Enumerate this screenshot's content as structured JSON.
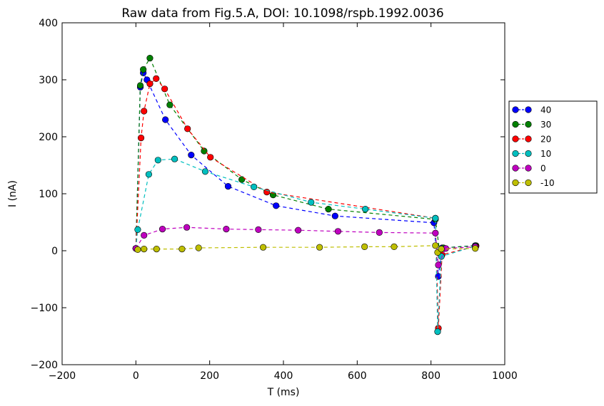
{
  "chart_data": {
    "type": "line",
    "title": "Raw data from Fig.5.A, DOI: 10.1098/rspb.1992.0036",
    "xlabel": "T (ms)",
    "ylabel": "I (nA)",
    "xlim": [
      -200,
      1000
    ],
    "ylim": [
      -200,
      400
    ],
    "xticks": [
      -200,
      0,
      200,
      400,
      600,
      800,
      1000
    ],
    "yticks": [
      -200,
      -100,
      0,
      100,
      200,
      300,
      400
    ],
    "xtick_labels": [
      "−200",
      "0",
      "200",
      "400",
      "600",
      "800",
      "1000"
    ],
    "ytick_labels": [
      "−200",
      "−100",
      "0",
      "100",
      "200",
      "300",
      "400"
    ],
    "grid": false,
    "legend_position": "outside-right",
    "line_style": "dashed with circle markers",
    "series": [
      {
        "name": "40",
        "color": "#0000ff",
        "x": [
          0,
          12,
          20,
          30,
          80,
          150,
          250,
          380,
          540,
          808,
          820,
          830,
          920
        ],
        "y": [
          4,
          287,
          312,
          300,
          230,
          168,
          113,
          79,
          61,
          49,
          -45,
          5,
          9
        ]
      },
      {
        "name": "30",
        "color": "#008000",
        "x": [
          0,
          12,
          20,
          38,
          92,
          185,
          287,
          372,
          522,
          812,
          824,
          834,
          922
        ],
        "y": [
          4,
          290,
          318,
          338,
          256,
          175,
          125,
          98,
          73,
          55,
          -5,
          5,
          9
        ]
      },
      {
        "name": "20",
        "color": "#ff0000",
        "x": [
          0,
          14,
          22,
          38,
          55,
          78,
          140,
          202,
          355,
          812,
          820,
          830,
          922
        ],
        "y": [
          4,
          198,
          245,
          293,
          302,
          284,
          214,
          164,
          103,
          57,
          -136,
          -7,
          8
        ]
      },
      {
        "name": "10",
        "color": "#00bfbf",
        "x": [
          0,
          5,
          35,
          60,
          105,
          188,
          320,
          475,
          622,
          812,
          818,
          828,
          920
        ],
        "y": [
          4,
          37,
          134,
          159,
          161,
          139,
          112,
          85,
          73,
          57,
          -142,
          -10,
          8
        ]
      },
      {
        "name": "0",
        "color": "#bf00bf",
        "x": [
          0,
          22,
          72,
          138,
          245,
          332,
          440,
          548,
          660,
          812,
          820,
          840,
          920
        ],
        "y": [
          4,
          27,
          38,
          41,
          38,
          37,
          36,
          34,
          32,
          31,
          -25,
          4,
          7
        ]
      },
      {
        "name": "-10",
        "color": "#bfbf00",
        "x": [
          5,
          22,
          56,
          125,
          170,
          345,
          498,
          620,
          700,
          812,
          818,
          828,
          920
        ],
        "y": [
          2,
          3,
          3,
          3,
          5,
          6,
          6,
          7,
          7,
          9,
          -3,
          3,
          4
        ]
      }
    ]
  }
}
